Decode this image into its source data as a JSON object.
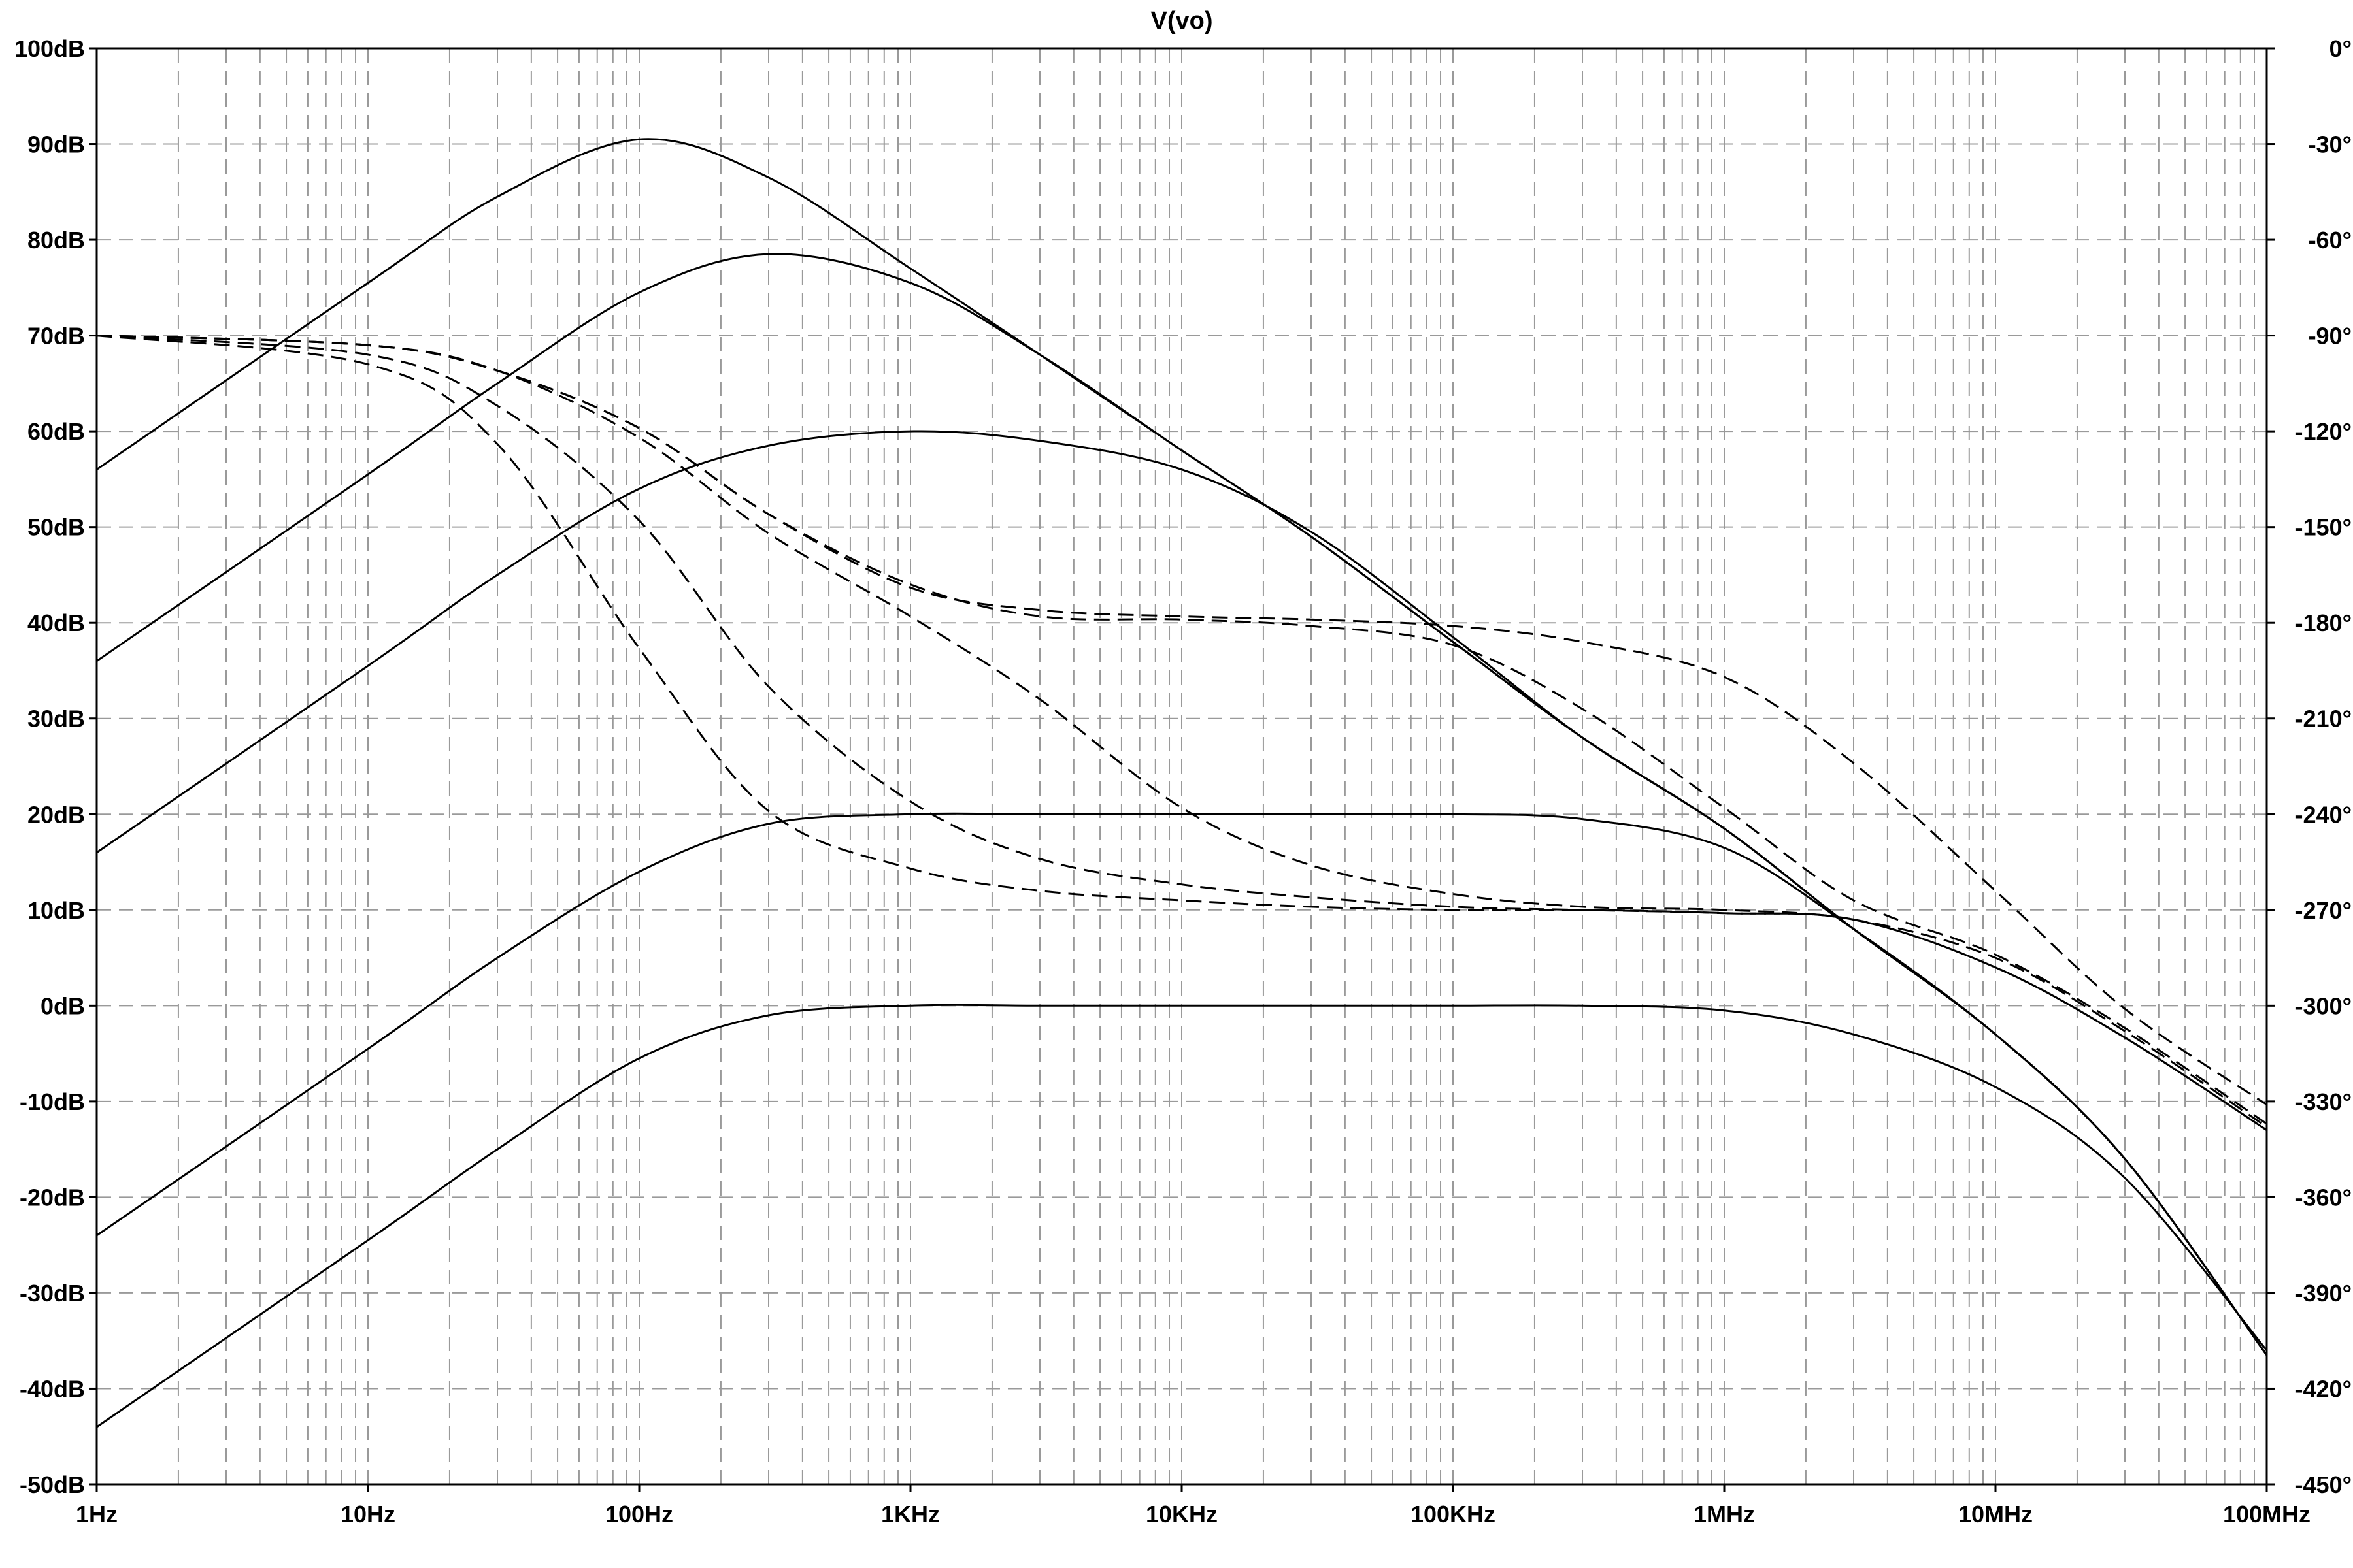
{
  "chart_data": {
    "type": "line",
    "title": "V(vo)",
    "x_scale": "log",
    "xlim": [
      1,
      100000000
    ],
    "ylim_left": [
      -50,
      100
    ],
    "ylim_right": [
      -450,
      0
    ],
    "grid": true,
    "x_ticks": [
      {
        "value": 1,
        "label": "1Hz"
      },
      {
        "value": 10,
        "label": "10Hz"
      },
      {
        "value": 100,
        "label": "100Hz"
      },
      {
        "value": 1000,
        "label": "1KHz"
      },
      {
        "value": 10000,
        "label": "10KHz"
      },
      {
        "value": 100000,
        "label": "100KHz"
      },
      {
        "value": 1000000,
        "label": "1MHz"
      },
      {
        "value": 10000000,
        "label": "10MHz"
      },
      {
        "value": 100000000,
        "label": "100MHz"
      }
    ],
    "y_ticks_left": [
      {
        "value": 100,
        "label": "100dB"
      },
      {
        "value": 90,
        "label": "90dB"
      },
      {
        "value": 80,
        "label": "80dB"
      },
      {
        "value": 70,
        "label": "70dB"
      },
      {
        "value": 60,
        "label": "60dB"
      },
      {
        "value": 50,
        "label": "50dB"
      },
      {
        "value": 40,
        "label": "40dB"
      },
      {
        "value": 30,
        "label": "30dB"
      },
      {
        "value": 20,
        "label": "20dB"
      },
      {
        "value": 10,
        "label": "10dB"
      },
      {
        "value": 0,
        "label": "0dB"
      },
      {
        "value": -10,
        "label": "-10dB"
      },
      {
        "value": -20,
        "label": "-20dB"
      },
      {
        "value": -30,
        "label": "-30dB"
      },
      {
        "value": -40,
        "label": "-40dB"
      },
      {
        "value": -50,
        "label": "-50dB"
      }
    ],
    "y_ticks_right": [
      {
        "value": 0,
        "label": "0°"
      },
      {
        "value": -30,
        "label": "-30°"
      },
      {
        "value": -60,
        "label": "-60°"
      },
      {
        "value": -90,
        "label": "-90°"
      },
      {
        "value": -120,
        "label": "-120°"
      },
      {
        "value": -150,
        "label": "-150°"
      },
      {
        "value": -180,
        "label": "-180°"
      },
      {
        "value": -210,
        "label": "-210°"
      },
      {
        "value": -240,
        "label": "-240°"
      },
      {
        "value": -270,
        "label": "-270°"
      },
      {
        "value": -300,
        "label": "-300°"
      },
      {
        "value": -330,
        "label": "-330°"
      },
      {
        "value": -360,
        "label": "-360°"
      },
      {
        "value": -390,
        "label": "-390°"
      },
      {
        "value": -420,
        "label": "-420°"
      },
      {
        "value": -450,
        "label": "-450°"
      }
    ],
    "magnitude_series": [
      {
        "axis": "left",
        "style": "solid",
        "x": [
          1,
          10,
          30,
          100,
          300,
          1000,
          3000,
          10000,
          30000,
          100000,
          300000,
          1000000,
          3000000,
          10000000,
          30000000,
          100000000
        ],
        "y": [
          56,
          75.5,
          84.5,
          90.5,
          86.5,
          77,
          68,
          58,
          49,
          38,
          28,
          18.5,
          8,
          -3,
          -16,
          -36.5
        ]
      },
      {
        "axis": "left",
        "style": "solid",
        "x": [
          1,
          10,
          30,
          100,
          300,
          1000,
          3000,
          10000,
          30000,
          100000,
          300000,
          1000000,
          3000000,
          10000000,
          30000000,
          100000000
        ],
        "y": [
          36,
          55.5,
          65,
          74.5,
          78.5,
          75.5,
          68,
          58,
          49,
          38,
          28,
          18.5,
          8,
          -3,
          -16,
          -36.5
        ]
      },
      {
        "axis": "left",
        "style": "solid",
        "x": [
          1,
          10,
          30,
          100,
          300,
          1000,
          3000,
          10000,
          30000,
          100000,
          300000,
          1000000,
          3000000,
          10000000,
          30000000,
          100000000
        ],
        "y": [
          16,
          35.5,
          45,
          54,
          58.5,
          60,
          59,
          56,
          49.5,
          38.5,
          28,
          18.5,
          8,
          -3,
          -16,
          -36.5
        ]
      },
      {
        "axis": "left",
        "style": "solid",
        "x": [
          1,
          10,
          30,
          100,
          300,
          1000,
          3000,
          10000,
          30000,
          100000,
          300000,
          1000000,
          3000000,
          10000000,
          30000000,
          100000000
        ],
        "y": [
          -24,
          -4.5,
          5,
          14,
          19,
          20,
          20,
          20,
          20,
          20,
          19.5,
          16.5,
          8,
          -3,
          -16,
          -36.5
        ]
      },
      {
        "axis": "left",
        "style": "solid",
        "x": [
          1,
          10,
          30,
          100,
          300,
          1000,
          3000,
          10000,
          30000,
          100000,
          300000,
          1000000,
          3000000,
          10000000,
          30000000,
          100000000
        ],
        "y": [
          -44,
          -24.5,
          -15,
          -5.5,
          -1,
          0,
          0,
          0,
          0,
          0,
          0,
          -0.5,
          -3,
          -8.5,
          -18,
          -36
        ]
      }
    ],
    "phase_series": [
      {
        "axis": "right",
        "style": "dashed",
        "x": [
          1,
          10,
          30,
          100,
          300,
          1000,
          3000,
          10000,
          30000,
          100000,
          300000,
          1000000,
          3000000,
          10000000,
          30000000,
          100000000
        ],
        "y": [
          -90,
          -93,
          -101,
          -119,
          -146,
          -169,
          -176,
          -178,
          -179,
          -181,
          -186,
          -197,
          -224,
          -264,
          -301,
          -331
        ]
      },
      {
        "axis": "right",
        "style": "dashed",
        "x": [
          1,
          10,
          30,
          100,
          300,
          1000,
          3000,
          10000,
          30000,
          100000,
          300000,
          1000000,
          3000000,
          10000000,
          30000000,
          100000000
        ],
        "y": [
          -90,
          -93,
          -101,
          -119,
          -146,
          -168,
          -178,
          -179,
          -181,
          -187,
          -207,
          -238,
          -267,
          -284,
          -307,
          -337
        ]
      },
      {
        "axis": "right",
        "style": "dashed",
        "x": [
          1,
          10,
          30,
          100,
          300,
          1000,
          3000,
          10000,
          30000,
          100000,
          300000,
          1000000,
          3000000,
          10000000,
          30000000,
          100000000
        ],
        "y": [
          -90,
          -93,
          -101,
          -122,
          -152,
          -178,
          -204,
          -238,
          -256,
          -265,
          -269,
          -270,
          -273,
          -285,
          -308,
          -338
        ]
      },
      {
        "axis": "right",
        "style": "dashed",
        "x": [
          1,
          10,
          30,
          100,
          300,
          1000,
          3000,
          10000,
          30000,
          100000,
          300000,
          1000000,
          3000000,
          10000000,
          30000000,
          100000000
        ],
        "y": [
          -90,
          -96,
          -112,
          -148,
          -200,
          -236,
          -254,
          -262,
          -266,
          -269,
          -270,
          -271,
          -273,
          -288,
          -310,
          -339
        ]
      },
      {
        "axis": "right",
        "style": "dashed",
        "x": [
          1,
          10,
          30,
          100,
          300,
          1000,
          3000,
          10000,
          30000,
          100000,
          300000,
          1000000,
          3000000,
          10000000,
          30000000,
          100000000
        ],
        "y": [
          -90,
          -99,
          -124,
          -188,
          -239,
          -257,
          -264,
          -267,
          -269,
          -270,
          -270,
          -271,
          -273,
          -288,
          -310,
          -339
        ]
      }
    ]
  }
}
